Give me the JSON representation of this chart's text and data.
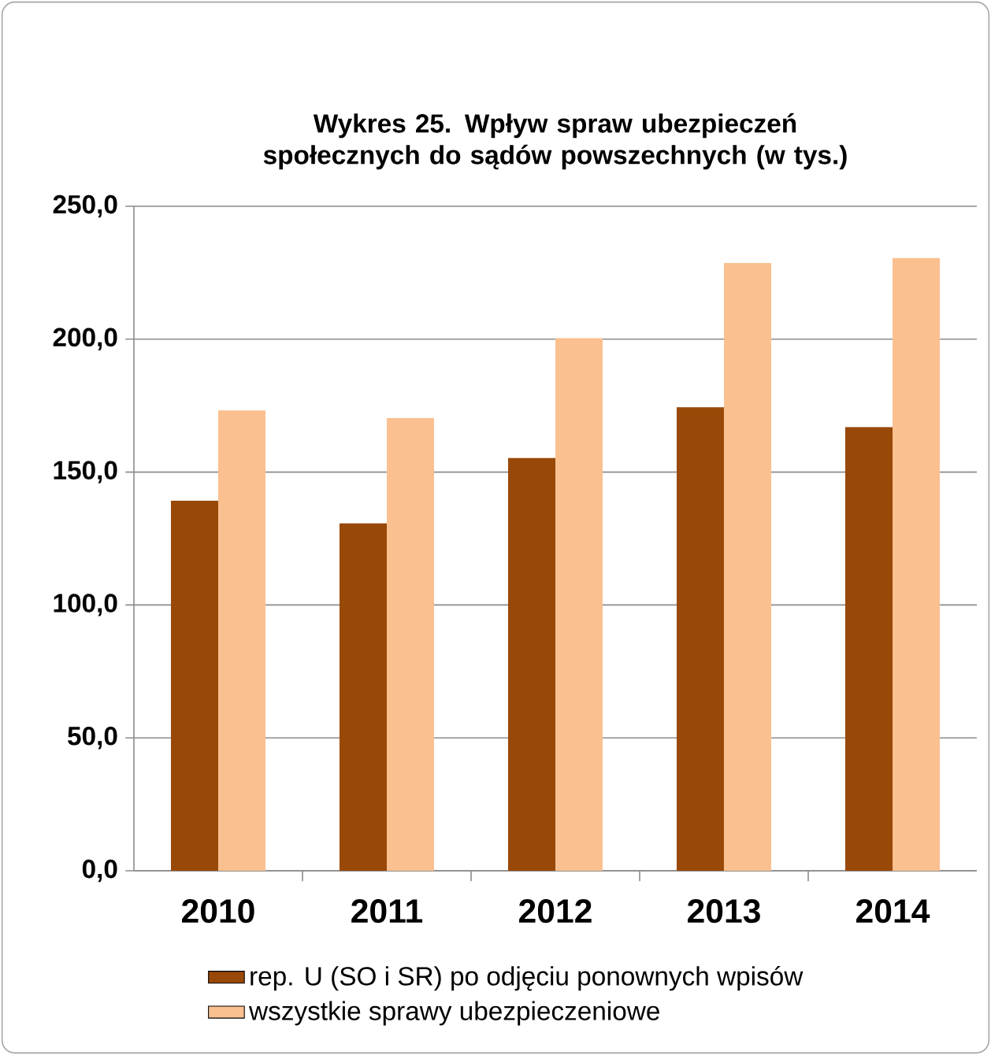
{
  "chart_data": {
    "type": "bar",
    "title": "Wykres 25. Wpływ spraw ubezpieczeń społecznych do sądów powszechnych (w tys.)",
    "categories": [
      "2010",
      "2011",
      "2012",
      "2013",
      "2014"
    ],
    "series": [
      {
        "name": "rep. U (SO i SR) po odjęciu ponownych wpisów",
        "color": "#984807",
        "values": [
          139.2,
          130.7,
          155.3,
          174.4,
          166.9
        ]
      },
      {
        "name": "wszystkie sprawy ubezpieczeniowe",
        "color": "#fac090",
        "values": [
          173.2,
          170.3,
          200.4,
          228.7,
          230.5
        ]
      }
    ],
    "ylim": [
      0,
      250
    ],
    "yticks": [
      {
        "value": 0,
        "label": "0,0"
      },
      {
        "value": 50,
        "label": "50,0"
      },
      {
        "value": 100,
        "label": "100,0"
      },
      {
        "value": 150,
        "label": "150,0"
      },
      {
        "value": 200,
        "label": "200,0"
      },
      {
        "value": 250,
        "label": "250,0"
      }
    ],
    "grid": "y",
    "legend": "bottom"
  }
}
